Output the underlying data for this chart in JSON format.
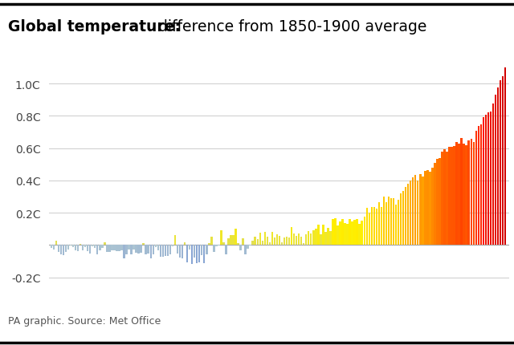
{
  "title_bold": "Global temperature:",
  "title_regular": " difference from 1850-1900 average",
  "source": "PA graphic. Source: Met Office",
  "ylim": [
    -0.32,
    1.18
  ],
  "yticks": [
    -0.2,
    0.0,
    0.2,
    0.4,
    0.6,
    0.8,
    1.0
  ],
  "ytick_labels": [
    "-0.2C",
    "",
    "0.2C",
    "0.4C",
    "0.6C",
    "0.8C",
    "1.0C"
  ],
  "start_year": 1850,
  "values": [
    -0.02,
    -0.028,
    0.025,
    -0.044,
    -0.058,
    -0.061,
    -0.044,
    -0.026,
    -0.003,
    -0.012,
    -0.031,
    -0.037,
    0.006,
    -0.034,
    -0.011,
    -0.04,
    -0.055,
    -0.009,
    -0.02,
    -0.058,
    -0.032,
    -0.017,
    0.016,
    -0.041,
    -0.041,
    -0.032,
    -0.035,
    -0.04,
    -0.04,
    -0.032,
    -0.083,
    -0.056,
    -0.028,
    -0.057,
    -0.027,
    -0.046,
    -0.055,
    -0.048,
    0.012,
    -0.06,
    -0.052,
    -0.085,
    -0.057,
    -0.012,
    -0.035,
    -0.072,
    -0.071,
    -0.07,
    -0.069,
    -0.056,
    -0.006,
    0.06,
    -0.053,
    -0.08,
    -0.085,
    0.017,
    -0.109,
    -0.03,
    -0.118,
    -0.076,
    -0.113,
    -0.108,
    -0.065,
    -0.114,
    -0.059,
    0.013,
    0.049,
    -0.042,
    -0.008,
    -0.002,
    0.089,
    0.017,
    -0.059,
    0.041,
    0.062,
    0.061,
    0.102,
    0.01,
    -0.034,
    0.04,
    -0.059,
    -0.025,
    -0.003,
    0.026,
    0.052,
    0.037,
    0.075,
    0.025,
    0.079,
    0.049,
    0.016,
    0.083,
    0.044,
    0.065,
    0.057,
    0.014,
    0.048,
    0.05,
    0.044,
    0.11,
    0.07,
    0.057,
    0.073,
    0.053,
    0.009,
    0.064,
    0.086,
    0.07,
    0.092,
    0.099,
    0.126,
    0.064,
    0.124,
    0.079,
    0.106,
    0.085,
    0.161,
    0.166,
    0.12,
    0.148,
    0.163,
    0.136,
    0.132,
    0.162,
    0.144,
    0.156,
    0.163,
    0.131,
    0.149,
    0.176,
    0.231,
    0.2,
    0.235,
    0.234,
    0.227,
    0.266,
    0.235,
    0.301,
    0.263,
    0.302,
    0.292,
    0.289,
    0.249,
    0.278,
    0.318,
    0.335,
    0.36,
    0.377,
    0.397,
    0.421,
    0.432,
    0.397,
    0.438,
    0.422,
    0.461,
    0.466,
    0.452,
    0.481,
    0.507,
    0.532,
    0.536,
    0.576,
    0.592,
    0.58,
    0.607,
    0.609,
    0.614,
    0.639,
    0.629,
    0.661,
    0.629,
    0.617,
    0.647,
    0.659,
    0.639,
    0.706,
    0.736,
    0.745,
    0.793,
    0.807,
    0.824,
    0.825,
    0.879,
    0.932,
    0.978,
    1.02,
    1.046,
    1.1
  ]
}
